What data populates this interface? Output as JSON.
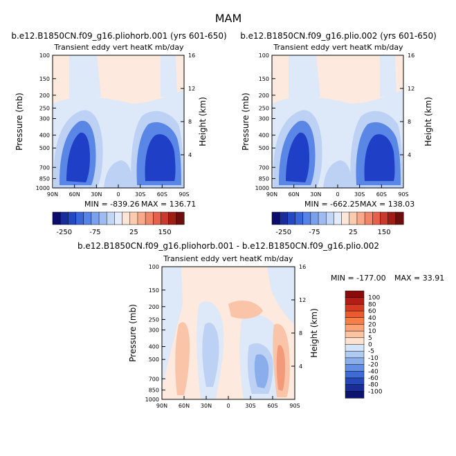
{
  "figure": {
    "season": "MAM"
  },
  "chart_data": [
    {
      "type": "heatmap",
      "title": "b.e12.B1850CN.f09_g16.pliohorb.001 (yrs 601-650)",
      "subtitle": "Transient eddy vert heatK mb/day",
      "ylabel": "Pressure (mb)",
      "ylabel_right": "Height (km)",
      "x_ticks": [
        "90N",
        "60N",
        "30N",
        "0",
        "30S",
        "60S",
        "90S"
      ],
      "y_ticks": [
        "100",
        "150",
        "200",
        "250",
        "300",
        "400",
        "500",
        "700",
        "850",
        "1000"
      ],
      "y_right_ticks": [
        "16",
        "12",
        "8",
        "4"
      ],
      "ylim": [
        1000,
        100
      ],
      "min_label": "MIN = -839.26",
      "max_label": "MAX = 136.71",
      "min": -839.26,
      "max": 136.71,
      "colorbar_labels": [
        "-250",
        "-75",
        "25",
        "150"
      ]
    },
    {
      "type": "heatmap",
      "title": "b.e12.B1850CN.f09_g16.plio.002 (yrs 601-650)",
      "subtitle": "Transient eddy vert heatK mb/day",
      "ylabel": "Pressure (mb)",
      "ylabel_right": "Height (km)",
      "x_ticks": [
        "90N",
        "60N",
        "30N",
        "0",
        "30S",
        "60S",
        "90S"
      ],
      "y_ticks": [
        "100",
        "150",
        "200",
        "250",
        "300",
        "400",
        "500",
        "700",
        "850",
        "1000"
      ],
      "y_right_ticks": [
        "16",
        "12",
        "8",
        "4"
      ],
      "ylim": [
        1000,
        100
      ],
      "min_label": "MIN = -662.25",
      "max_label": "MAX = 138.03",
      "min": -662.25,
      "max": 138.03,
      "colorbar_labels": [
        "-250",
        "-75",
        "25",
        "150"
      ]
    },
    {
      "type": "heatmap",
      "title": "b.e12.B1850CN.f09_g16.pliohorb.001 - b.e12.B1850CN.f09_g16.plio.002",
      "subtitle": "Transient eddy vert heatK mb/day",
      "ylabel": "Pressure (mb)",
      "ylabel_right": "Height (km)",
      "x_ticks": [
        "90N",
        "60N",
        "30N",
        "0",
        "30S",
        "60S",
        "90S"
      ],
      "y_ticks": [
        "100",
        "150",
        "200",
        "250",
        "300",
        "400",
        "500",
        "700",
        "850",
        "1000"
      ],
      "y_right_ticks": [
        "16",
        "12",
        "8",
        "4"
      ],
      "ylim": [
        1000,
        100
      ],
      "min_label": "MIN = -177.00",
      "max_label": "MAX =  33.91",
      "min": -177.0,
      "max": 33.91,
      "colorbar_labels": [
        "100",
        "80",
        "60",
        "40",
        "20",
        "10",
        "5",
        "0",
        "-5",
        "-10",
        "-20",
        "-40",
        "-60",
        "-80",
        "-100"
      ]
    }
  ],
  "colorbar_top": {
    "colors": [
      "#0c0c6e",
      "#1a2b9c",
      "#2447c4",
      "#3a66dc",
      "#5683e8",
      "#7aa0ee",
      "#9fbcf2",
      "#c3d6f6",
      "#e3ecfa",
      "#fde6d6",
      "#fbcbb0",
      "#f8a98a",
      "#f3866a",
      "#e6604c",
      "#c93a2e",
      "#9e1d14",
      "#6e0d0d"
    ]
  },
  "colorbar_diff": {
    "colors": [
      "#8b0b0b",
      "#b41d16",
      "#d73a22",
      "#ec5a30",
      "#f47f48",
      "#f9a377",
      "#fcc3a2",
      "#fde3cf",
      "#d4e4f8",
      "#b0cbf2",
      "#8aaeec",
      "#628ee3",
      "#3e6cd4",
      "#2548b8",
      "#182d96",
      "#0c1470"
    ]
  },
  "colors": {
    "strong_neg": "#1f3fc6",
    "mid_neg": "#5a86e6",
    "light_neg": "#bcd1f3",
    "faint_neg": "#dde8f8",
    "faint_pos": "#fde9dd",
    "light_pos": "#f9c4a8",
    "mid_pos": "#f29a79"
  }
}
